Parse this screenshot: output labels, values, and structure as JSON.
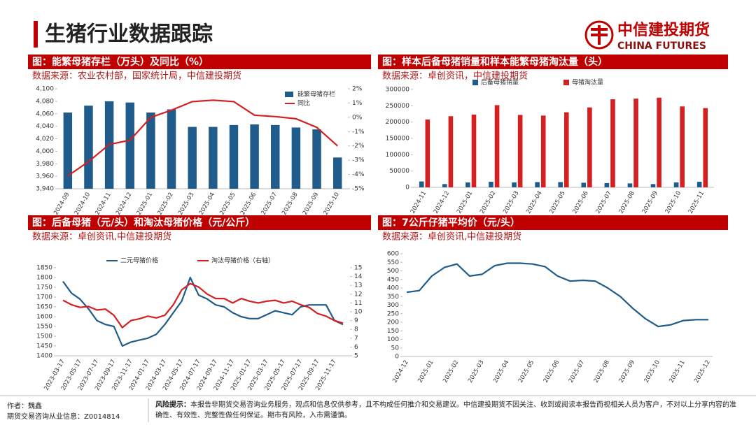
{
  "header": {
    "title": "生猪行业数据跟踪",
    "logo_cn": "中信建投期货",
    "logo_en": "CHINA FUTURES"
  },
  "chart_data": [
    {
      "type": "combo",
      "title": "图：能繁母猪存栏（万头）及同比（%）",
      "source": "数据来源：农业农村部，国家统计局，中信建投期货",
      "categories": [
        "2024-09",
        "2024-10",
        "2024-11",
        "2024-12",
        "2025-01",
        "2025-02",
        "2025-03",
        "2025-04",
        "2025-05",
        "2025-06",
        "2025-07",
        "2025-08",
        "2025-09",
        "2025-10"
      ],
      "series": [
        {
          "name": "能繁母猪存栏",
          "type": "bar",
          "color": "#1f5c8b",
          "values": [
            4062,
            4073,
            4080,
            4078,
            4062,
            4067,
            4039,
            4039,
            4042,
            4043,
            4042,
            4038,
            4035,
            3990
          ]
        },
        {
          "name": "同比",
          "type": "line",
          "axis": "y2",
          "color": "#d42020",
          "values": [
            -4.1,
            -3.1,
            -1.9,
            -1.6,
            0,
            0.5,
            1.1,
            1.2,
            1.1,
            0.15,
            0.05,
            -0.1,
            -0.7,
            -2.0
          ]
        }
      ],
      "ylim": [
        3940,
        4100
      ],
      "yticks": [
        {
          "value": 3940,
          "label": "3,940"
        },
        {
          "value": 3960,
          "label": "3,960"
        },
        {
          "value": 3980,
          "label": "3,980"
        },
        {
          "value": 4000,
          "label": "4,000"
        },
        {
          "value": 4020,
          "label": "4,020"
        },
        {
          "value": 4040,
          "label": "4,040"
        },
        {
          "value": 4060,
          "label": "4,060"
        },
        {
          "value": 4080,
          "label": "4,080"
        },
        {
          "value": 4100,
          "label": "4,100"
        }
      ],
      "y2lim": [
        -5,
        2
      ],
      "y2ticks": [
        {
          "value": -5,
          "label": "-5%"
        },
        {
          "value": -4,
          "label": "-4%"
        },
        {
          "value": -3,
          "label": "-3%"
        },
        {
          "value": -2,
          "label": "-2%"
        },
        {
          "value": -1,
          "label": "-1%"
        },
        {
          "value": 0,
          "label": "0%"
        },
        {
          "value": 1,
          "label": "1%"
        },
        {
          "value": 2,
          "label": "2%"
        }
      ],
      "legend": "upper right"
    },
    {
      "type": "bar",
      "title": "图：样本后备母猪销量和样本能繁母猪淘汰量（头）",
      "source": "数据来源：卓创资讯，中信建投期货",
      "categories": [
        "2024-11",
        "2024-12",
        "2025-01",
        "2025-02",
        "2025-03",
        "2025-04",
        "2025-05",
        "2025-06",
        "2025-07",
        "2025-08",
        "2025-09",
        "2025-10",
        "2025-11"
      ],
      "series": [
        {
          "name": "后备母猪销量",
          "color": "#1f5c8b",
          "values": [
            18000,
            10000,
            15000,
            17000,
            15000,
            16000,
            16000,
            14000,
            13000,
            12000,
            10000,
            15000,
            17000
          ]
        },
        {
          "name": "母猪淘汰量",
          "color": "#d42020",
          "values": [
            208000,
            218000,
            223000,
            252000,
            222000,
            220000,
            230000,
            245000,
            270000,
            272000,
            275000,
            248000,
            243000
          ]
        }
      ],
      "ylim": [
        0,
        300000
      ],
      "yticks": [
        0,
        50000,
        100000,
        150000,
        200000,
        250000,
        300000
      ],
      "legend": "upper center"
    },
    {
      "type": "line",
      "title": "图：后备母猪（元/头）和淘汰母猪价格（元/公斤）",
      "source": "数据来源：卓创资讯,中信建投期货",
      "categories": [
        "2023-03-17",
        null,
        "2023-05-17",
        null,
        "2023-07-17",
        null,
        "2023-09-17",
        null,
        "2023-11-17",
        null,
        "2024-01-17",
        null,
        "2024-03-17",
        null,
        "2024-05-17",
        null,
        "2024-07-17",
        null,
        "2024-09-17",
        null,
        "2024-11-17",
        null,
        "2025-01-17",
        null,
        "2025-03-17",
        null,
        "2025-05-17",
        null,
        "2025-07-17",
        null,
        "2025-09-17",
        null,
        "2025-11-17",
        null
      ],
      "series": [
        {
          "name": "二元母猪价格",
          "color": "#1f5c8b",
          "values": [
            1780,
            1720,
            1690,
            1640,
            1580,
            1560,
            1550,
            1450,
            1470,
            1480,
            1490,
            1510,
            1560,
            1620,
            1680,
            1800,
            1710,
            1690,
            1660,
            1650,
            1620,
            1600,
            1590,
            1590,
            1610,
            1630,
            1620,
            1610,
            1650,
            1660,
            1660,
            1660,
            1580,
            1560
          ]
        },
        {
          "name": "淘汰母猪价格（右轴）",
          "axis": "y2",
          "color": "#d42020",
          "values": [
            11.3,
            10.8,
            10.5,
            10.6,
            10.2,
            10.3,
            9.6,
            8.2,
            9.0,
            9.2,
            9.5,
            9.3,
            9.6,
            10.8,
            12.5,
            13.2,
            12.8,
            12.0,
            11.5,
            11.5,
            11.0,
            11.5,
            11.2,
            11.0,
            11.2,
            11.3,
            11.0,
            11.2,
            10.8,
            10.5,
            9.8,
            9.5,
            9.0,
            8.7
          ]
        }
      ],
      "ylim": [
        1400,
        1850
      ],
      "yticks": [
        1400,
        1450,
        1500,
        1550,
        1600,
        1650,
        1700,
        1750,
        1800,
        1850
      ],
      "y2lim": [
        5,
        15
      ],
      "y2ticks": [
        5,
        6,
        7,
        8,
        9,
        10,
        11,
        12,
        13,
        14,
        15
      ],
      "legend": "upper center"
    },
    {
      "type": "line",
      "title": "图：7公斤仔猪平均价（元/头）",
      "source": "数据来源：卓创资讯,中信建投期货",
      "categories": [
        "2024-12",
        null,
        "2025-01",
        null,
        "2025-02",
        null,
        "2025-03",
        null,
        "2025-04",
        null,
        "2025-05",
        null,
        "2025-06",
        null,
        "2025-07",
        null,
        "2025-08",
        null,
        "2025-09",
        null,
        "2025-10",
        null,
        "2025-11",
        null,
        "2025-12"
      ],
      "series": [
        {
          "color": "#1f5c8b",
          "values": [
            375,
            385,
            470,
            520,
            540,
            470,
            480,
            530,
            545,
            545,
            540,
            525,
            470,
            440,
            445,
            440,
            400,
            350,
            280,
            220,
            175,
            185,
            210,
            215,
            215
          ]
        }
      ],
      "ylim": [
        0,
        600
      ],
      "yticks": [
        0,
        50,
        100,
        150,
        200,
        250,
        300,
        350,
        400,
        450,
        500,
        550,
        600
      ]
    }
  ],
  "footer": {
    "author": "作者：魏鑫",
    "license": "期货交易咨询从业信息：Z0014814",
    "risk_label": "风险提示：",
    "risk_text": "本报告非期货交易咨询业务服务，观点和信息仅供参考，且不构成任何推介和交易建议。中信建投期货不因关注、收到或阅读本报告而视相关人员为客户，不对以上分享内容的准确性、有效性、完整性做任何保证。期市有风险，入市需谨慎。"
  }
}
